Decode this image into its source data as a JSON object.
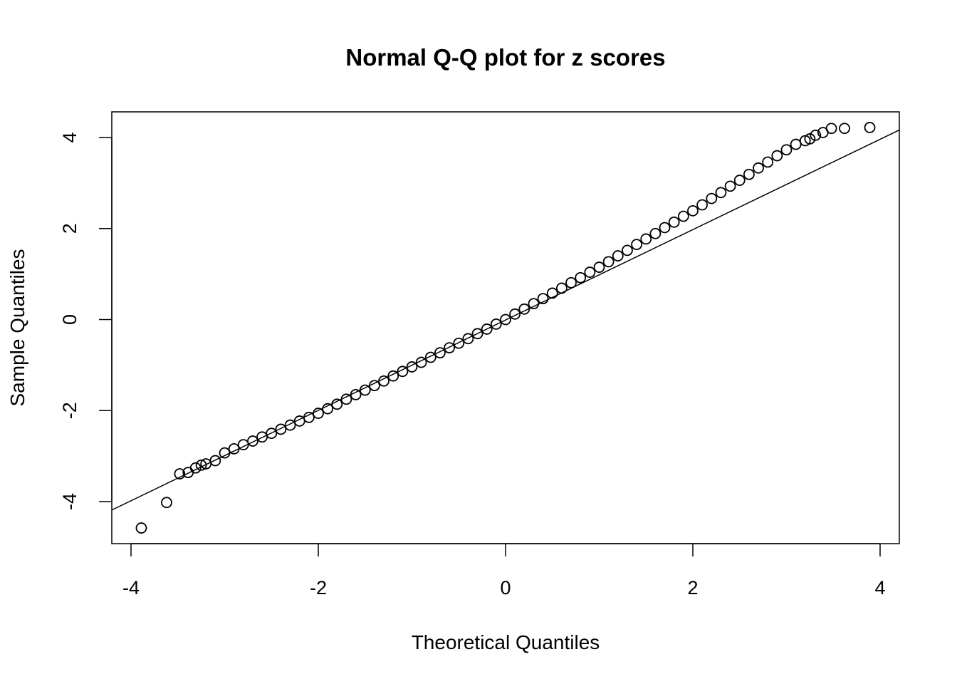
{
  "chart_data": {
    "type": "scatter",
    "title": "Normal Q-Q plot for z scores",
    "xlabel": "Theoretical Quantiles",
    "ylabel": "Sample Quantiles",
    "xlim": [
      -4.21,
      4.21
    ],
    "ylim": [
      -4.9,
      4.6
    ],
    "xticks": [
      -4,
      -2,
      0,
      2,
      4
    ],
    "yticks": [
      -4,
      -2,
      0,
      2,
      4
    ],
    "grid": false,
    "marker": "open-circle",
    "color": "#000000",
    "points": {
      "x": [
        -3.89,
        -3.62,
        -3.48,
        -3.39,
        -3.31,
        -3.25,
        -3.2,
        -3.1,
        -3.0,
        -2.9,
        -2.8,
        -2.7,
        -2.6,
        -2.5,
        -2.4,
        -2.3,
        -2.2,
        -2.1,
        -2.0,
        -1.9,
        -1.8,
        -1.7,
        -1.6,
        -1.5,
        -1.4,
        -1.3,
        -1.2,
        -1.1,
        -1.0,
        -0.9,
        -0.8,
        -0.7,
        -0.6,
        -0.5,
        -0.4,
        -0.3,
        -0.2,
        -0.1,
        0,
        0.1,
        0.2,
        0.3,
        0.4,
        0.5,
        0.6,
        0.7,
        0.8,
        0.9,
        1.0,
        1.1,
        1.2,
        1.3,
        1.4,
        1.5,
        1.6,
        1.7,
        1.8,
        1.9,
        2.0,
        2.1,
        2.2,
        2.3,
        2.4,
        2.5,
        2.6,
        2.7,
        2.8,
        2.9,
        3.0,
        3.1,
        3.2,
        3.25,
        3.31,
        3.39,
        3.48,
        3.62,
        3.89
      ],
      "y": [
        -4.58,
        -4.02,
        -3.39,
        -3.36,
        -3.26,
        -3.2,
        -3.17,
        -3.1,
        -2.93,
        -2.84,
        -2.75,
        -2.67,
        -2.58,
        -2.5,
        -2.41,
        -2.32,
        -2.23,
        -2.15,
        -2.06,
        -1.96,
        -1.86,
        -1.75,
        -1.65,
        -1.55,
        -1.45,
        -1.35,
        -1.24,
        -1.14,
        -1.04,
        -0.94,
        -0.83,
        -0.73,
        -0.62,
        -0.52,
        -0.42,
        -0.31,
        -0.21,
        -0.1,
        0,
        0.12,
        0.23,
        0.35,
        0.46,
        0.58,
        0.69,
        0.81,
        0.92,
        1.04,
        1.15,
        1.27,
        1.4,
        1.52,
        1.65,
        1.77,
        1.89,
        2.02,
        2.14,
        2.27,
        2.39,
        2.52,
        2.66,
        2.79,
        2.93,
        3.06,
        3.19,
        3.33,
        3.46,
        3.6,
        3.73,
        3.85,
        3.93,
        3.97,
        4.05,
        4.11,
        4.2,
        4.2,
        4.22
      ]
    },
    "reference_line": {
      "x": [
        -4.21,
        4.21
      ],
      "y": [
        -4.19,
        4.17
      ]
    }
  }
}
